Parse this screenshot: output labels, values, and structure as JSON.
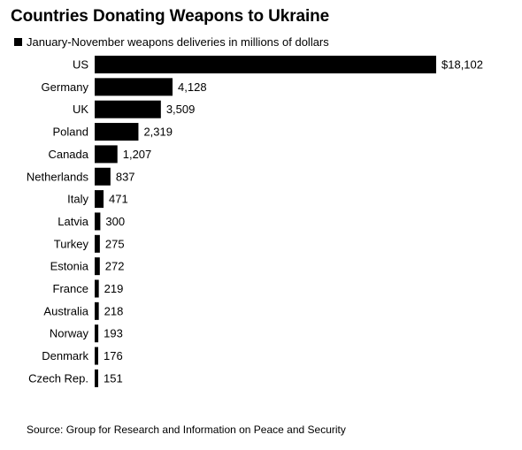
{
  "title": "Countries Donating Weapons to Ukraine",
  "legend_label": "January-November weapons deliveries in millions of dollars",
  "source": "Source: Group for Research and Information on Peace and Security",
  "colors": {
    "bar": "#000000",
    "text": "#000000",
    "background": "#ffffff"
  },
  "chart_data": {
    "type": "bar",
    "orientation": "horizontal",
    "title": "Countries Donating Weapons to Ukraine",
    "categories": [
      "US",
      "Germany",
      "UK",
      "Poland",
      "Canada",
      "Netherlands",
      "Italy",
      "Latvia",
      "Turkey",
      "Estonia",
      "France",
      "Australia",
      "Norway",
      "Denmark",
      "Czech Rep."
    ],
    "series": [
      {
        "name": "January-November weapons deliveries in millions of dollars",
        "values": [
          18102,
          4128,
          3509,
          2319,
          1207,
          837,
          471,
          300,
          275,
          272,
          219,
          218,
          193,
          176,
          151
        ]
      }
    ],
    "value_labels": [
      "$18,102",
      "4,128",
      "3,509",
      "2,319",
      "1,207",
      "837",
      "471",
      "300",
      "275",
      "272",
      "219",
      "218",
      "193",
      "176",
      "151"
    ],
    "xlim": [
      0,
      18102
    ],
    "grid": false,
    "legend_position": "top-left"
  }
}
